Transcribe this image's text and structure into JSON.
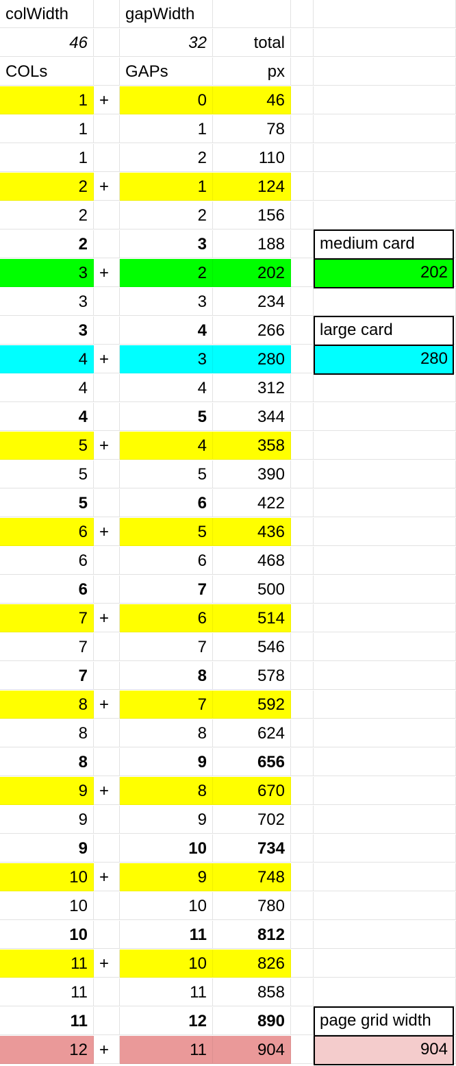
{
  "header": {
    "col_width_label": "colWidth",
    "gap_width_label": "gapWidth",
    "col_width_value": "46",
    "gap_width_value": "32",
    "total_label": "total",
    "cols_label": "COLs",
    "gaps_label": "GAPs",
    "px_label": "px"
  },
  "colors": {
    "yellow": "#ffff00",
    "green": "#00ff00",
    "cyan": "#00ffff",
    "red": "#ea9999",
    "pink": "#f4cccc",
    "grid": "#e2e2e2"
  },
  "rows": [
    {
      "cols": "1",
      "plus": "+",
      "gaps": "0",
      "total": "46",
      "fill": "yellow",
      "bold": false,
      "bold_total": false
    },
    {
      "cols": "1",
      "plus": "",
      "gaps": "1",
      "total": "78",
      "fill": "",
      "bold": false,
      "bold_total": false
    },
    {
      "cols": "1",
      "plus": "",
      "gaps": "2",
      "total": "110",
      "fill": "",
      "bold": false,
      "bold_total": false
    },
    {
      "cols": "2",
      "plus": "+",
      "gaps": "1",
      "total": "124",
      "fill": "yellow",
      "bold": false,
      "bold_total": false
    },
    {
      "cols": "2",
      "plus": "",
      "gaps": "2",
      "total": "156",
      "fill": "",
      "bold": false,
      "bold_total": false
    },
    {
      "cols": "2",
      "plus": "",
      "gaps": "3",
      "total": "188",
      "fill": "",
      "bold": true,
      "bold_total": false
    },
    {
      "cols": "3",
      "plus": "+",
      "gaps": "2",
      "total": "202",
      "fill": "green",
      "bold": false,
      "bold_total": false
    },
    {
      "cols": "3",
      "plus": "",
      "gaps": "3",
      "total": "234",
      "fill": "",
      "bold": false,
      "bold_total": false
    },
    {
      "cols": "3",
      "plus": "",
      "gaps": "4",
      "total": "266",
      "fill": "",
      "bold": true,
      "bold_total": false
    },
    {
      "cols": "4",
      "plus": "+",
      "gaps": "3",
      "total": "280",
      "fill": "cyan",
      "bold": false,
      "bold_total": false
    },
    {
      "cols": "4",
      "plus": "",
      "gaps": "4",
      "total": "312",
      "fill": "",
      "bold": false,
      "bold_total": false
    },
    {
      "cols": "4",
      "plus": "",
      "gaps": "5",
      "total": "344",
      "fill": "",
      "bold": true,
      "bold_total": false
    },
    {
      "cols": "5",
      "plus": "+",
      "gaps": "4",
      "total": "358",
      "fill": "yellow",
      "bold": false,
      "bold_total": false
    },
    {
      "cols": "5",
      "plus": "",
      "gaps": "5",
      "total": "390",
      "fill": "",
      "bold": false,
      "bold_total": false
    },
    {
      "cols": "5",
      "plus": "",
      "gaps": "6",
      "total": "422",
      "fill": "",
      "bold": true,
      "bold_total": false
    },
    {
      "cols": "6",
      "plus": "+",
      "gaps": "5",
      "total": "436",
      "fill": "yellow",
      "bold": false,
      "bold_total": false
    },
    {
      "cols": "6",
      "plus": "",
      "gaps": "6",
      "total": "468",
      "fill": "",
      "bold": false,
      "bold_total": false
    },
    {
      "cols": "6",
      "plus": "",
      "gaps": "7",
      "total": "500",
      "fill": "",
      "bold": true,
      "bold_total": false
    },
    {
      "cols": "7",
      "plus": "+",
      "gaps": "6",
      "total": "514",
      "fill": "yellow",
      "bold": false,
      "bold_total": false
    },
    {
      "cols": "7",
      "plus": "",
      "gaps": "7",
      "total": "546",
      "fill": "",
      "bold": false,
      "bold_total": false
    },
    {
      "cols": "7",
      "plus": "",
      "gaps": "8",
      "total": "578",
      "fill": "",
      "bold": true,
      "bold_total": false
    },
    {
      "cols": "8",
      "plus": "+",
      "gaps": "7",
      "total": "592",
      "fill": "yellow",
      "bold": false,
      "bold_total": false
    },
    {
      "cols": "8",
      "plus": "",
      "gaps": "8",
      "total": "624",
      "fill": "",
      "bold": false,
      "bold_total": false
    },
    {
      "cols": "8",
      "plus": "",
      "gaps": "9",
      "total": "656",
      "fill": "",
      "bold": true,
      "bold_total": true
    },
    {
      "cols": "9",
      "plus": "+",
      "gaps": "8",
      "total": "670",
      "fill": "yellow",
      "bold": false,
      "bold_total": false
    },
    {
      "cols": "9",
      "plus": "",
      "gaps": "9",
      "total": "702",
      "fill": "",
      "bold": false,
      "bold_total": false
    },
    {
      "cols": "9",
      "plus": "",
      "gaps": "10",
      "total": "734",
      "fill": "",
      "bold": true,
      "bold_total": true
    },
    {
      "cols": "10",
      "plus": "+",
      "gaps": "9",
      "total": "748",
      "fill": "yellow",
      "bold": false,
      "bold_total": false
    },
    {
      "cols": "10",
      "plus": "",
      "gaps": "10",
      "total": "780",
      "fill": "",
      "bold": false,
      "bold_total": false
    },
    {
      "cols": "10",
      "plus": "",
      "gaps": "11",
      "total": "812",
      "fill": "",
      "bold": true,
      "bold_total": true
    },
    {
      "cols": "11",
      "plus": "+",
      "gaps": "10",
      "total": "826",
      "fill": "yellow",
      "bold": false,
      "bold_total": false
    },
    {
      "cols": "11",
      "plus": "",
      "gaps": "11",
      "total": "858",
      "fill": "",
      "bold": false,
      "bold_total": false
    },
    {
      "cols": "11",
      "plus": "",
      "gaps": "12",
      "total": "890",
      "fill": "",
      "bold": true,
      "bold_total": true
    },
    {
      "cols": "12",
      "plus": "+",
      "gaps": "11",
      "total": "904",
      "fill": "red",
      "bold": false,
      "bold_total": false
    }
  ],
  "boxes": [
    {
      "label": "medium card",
      "value": "202",
      "fill": "green",
      "after_total": "188"
    },
    {
      "label": "large card",
      "value": "280",
      "fill": "cyan",
      "after_total": "266"
    },
    {
      "label": "page grid width",
      "value": "904",
      "fill": "pink",
      "after_total": "890"
    }
  ]
}
